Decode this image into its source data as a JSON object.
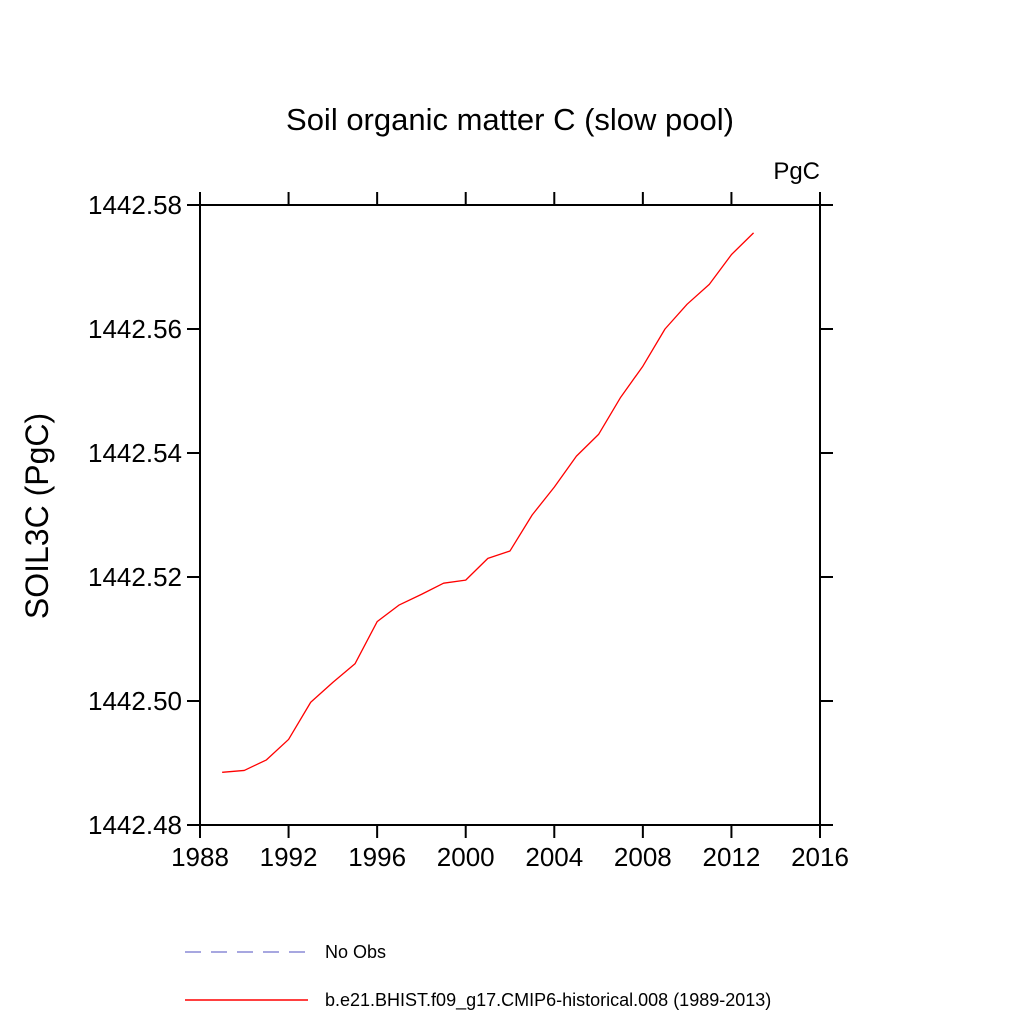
{
  "page": {
    "background": "#ffffff"
  },
  "chart_data": {
    "type": "line",
    "title": "Soil organic matter C (slow pool)",
    "top_right_unit_label": "PgC",
    "ylabel": "SOIL3C  (PgC)",
    "xlabel": "",
    "xlim": [
      1988,
      2016
    ],
    "ylim": [
      1442.48,
      1442.58
    ],
    "xtick_labels": [
      "1988",
      "1992",
      "1996",
      "2000",
      "2004",
      "2008",
      "2012",
      "2016"
    ],
    "ytick_labels": [
      "1442.48",
      "1442.50",
      "1442.52",
      "1442.54",
      "1442.56",
      "1442.58"
    ],
    "grid": false,
    "frame_color": "#000000",
    "legend_position": "bottom-left",
    "legend": [
      {
        "label": "No Obs",
        "color": "#8a8ad6",
        "style": "dashed"
      },
      {
        "label": "b.e21.BHIST.f09_g17.CMIP6-historical.008 (1989-2013)",
        "color": "#ff0000",
        "style": "solid"
      }
    ],
    "series": [
      {
        "name": "b.e21.BHIST.f09_g17.CMIP6-historical.008 (1989-2013)",
        "color": "#ff0000",
        "style": "solid",
        "x": [
          1989,
          1990,
          1991,
          1992,
          1993,
          1994,
          1995,
          1996,
          1997,
          1998,
          1999,
          2000,
          2001,
          2002,
          2003,
          2004,
          2005,
          2006,
          2007,
          2008,
          2009,
          2010,
          2011,
          2012,
          2013
        ],
        "y": [
          1442.4885,
          1442.4888,
          1442.4905,
          1442.4938,
          1442.4998,
          1442.503,
          1442.506,
          1442.5128,
          1442.5155,
          1442.5172,
          1442.519,
          1442.5195,
          1442.523,
          1442.5242,
          1442.53,
          1442.5345,
          1442.5395,
          1442.543,
          1442.549,
          1442.554,
          1442.56,
          1442.564,
          1442.5672,
          1442.572,
          1442.5755
        ]
      }
    ]
  }
}
